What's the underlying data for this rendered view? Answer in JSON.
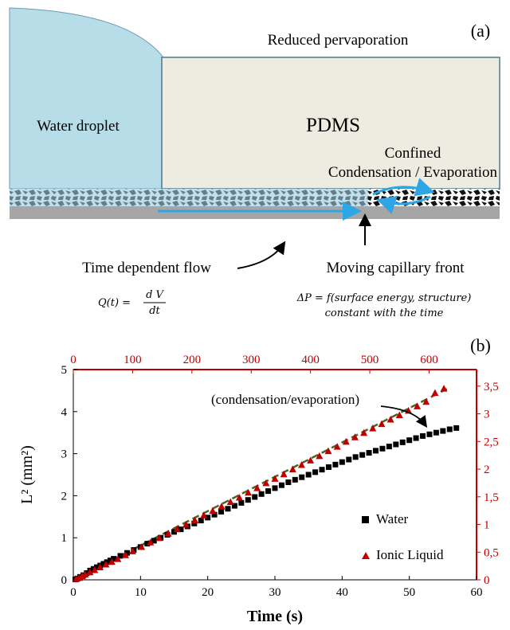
{
  "panel_a": {
    "label": "(a)",
    "top_text": "Reduced pervaporation",
    "droplet_label": "Water droplet",
    "pdms_label": "PDMS",
    "confined_line1": "Confined",
    "confined_line2": "Condensation / Evaporation",
    "flow_label": "Time dependent flow",
    "front_label": "Moving capillary front",
    "eq_q_left": "Q(t) =",
    "eq_q_num": "d V",
    "eq_q_den": "dt",
    "eq_p_line1": "ΔP = f(surface energy, structure)",
    "eq_p_line2": "constant with the time",
    "colors": {
      "droplet": "#b7dde8",
      "pdms": "#eeece1",
      "substrate": "#a6a6a6",
      "arrow": "#2ea6e6"
    }
  },
  "chart_data": {
    "type": "scatter",
    "label": "(b)",
    "xlabel": "Time (s)",
    "ylabel": "L² (mm²)",
    "annotation": "(condensation/evaporation)",
    "x_bottom_ticks": [
      "0",
      "10",
      "20",
      "30",
      "40",
      "50",
      "60"
    ],
    "x_bottom_range": [
      0,
      60
    ],
    "x_top_ticks": [
      "0",
      "100",
      "200",
      "300",
      "400",
      "500",
      "600"
    ],
    "x_top_range": [
      0,
      680
    ],
    "y_left_ticks": [
      "0",
      "1",
      "2",
      "3",
      "4",
      "5"
    ],
    "y_left_range": [
      0,
      5
    ],
    "y_right_ticks": [
      "0",
      "0,5",
      "1",
      "1,5",
      "2",
      "2,5",
      "3",
      "3,5"
    ],
    "y_right_range": [
      0,
      3.8
    ],
    "colors": {
      "water": "#000000",
      "ionic": "#c00000",
      "fit": "#4f6228",
      "top_axis": "#c00000"
    },
    "series": [
      {
        "name": "Water",
        "axes": "bottom-left",
        "marker": "square",
        "x": [
          0.3,
          0.6,
          1,
          1.5,
          2,
          2.5,
          3,
          3.5,
          4,
          4.5,
          5,
          5.5,
          6,
          7,
          8,
          9,
          10,
          11,
          12,
          13,
          14,
          15,
          16,
          17,
          18,
          19,
          20,
          21,
          22,
          23,
          24,
          25,
          26,
          27,
          28,
          29,
          30,
          31,
          32,
          33,
          34,
          35,
          36,
          37,
          38,
          39,
          40,
          41,
          42,
          43,
          44,
          45,
          46,
          47,
          48,
          49,
          50,
          51,
          52,
          53,
          54,
          55,
          56,
          57
        ],
        "y": [
          0.01,
          0.03,
          0.07,
          0.11,
          0.16,
          0.22,
          0.26,
          0.3,
          0.34,
          0.38,
          0.42,
          0.46,
          0.5,
          0.57,
          0.64,
          0.71,
          0.78,
          0.86,
          0.93,
          1.0,
          1.07,
          1.14,
          1.2,
          1.27,
          1.34,
          1.41,
          1.48,
          1.55,
          1.62,
          1.69,
          1.76,
          1.83,
          1.9,
          1.97,
          2.04,
          2.11,
          2.18,
          2.25,
          2.32,
          2.38,
          2.44,
          2.5,
          2.56,
          2.62,
          2.68,
          2.74,
          2.8,
          2.86,
          2.92,
          2.97,
          3.02,
          3.07,
          3.12,
          3.17,
          3.22,
          3.27,
          3.32,
          3.37,
          3.42,
          3.46,
          3.5,
          3.54,
          3.58,
          3.61
        ]
      },
      {
        "name": "Ionic Liquid",
        "axes": "top-right",
        "marker": "triangle",
        "x": [
          5,
          10,
          15,
          20,
          28,
          36,
          45,
          55,
          65,
          75,
          88,
          100,
          115,
          130,
          145,
          160,
          175,
          190,
          205,
          220,
          235,
          250,
          265,
          280,
          295,
          310,
          325,
          340,
          355,
          370,
          385,
          400,
          415,
          430,
          445,
          460,
          475,
          490,
          505,
          520,
          535,
          550,
          565,
          580,
          595,
          610,
          625
        ],
        "y": [
          0.02,
          0.04,
          0.07,
          0.1,
          0.14,
          0.18,
          0.23,
          0.28,
          0.33,
          0.38,
          0.45,
          0.52,
          0.6,
          0.68,
          0.76,
          0.84,
          0.92,
          1.0,
          1.08,
          1.17,
          1.25,
          1.33,
          1.41,
          1.49,
          1.58,
          1.66,
          1.75,
          1.83,
          1.91,
          2.0,
          2.08,
          2.16,
          2.24,
          2.33,
          2.41,
          2.5,
          2.58,
          2.66,
          2.74,
          2.82,
          2.9,
          2.98,
          3.06,
          3.14,
          3.22,
          3.38,
          3.46
        ]
      }
    ],
    "fit_line": {
      "axes": "top-right",
      "x": [
        0,
        630
      ],
      "y": [
        0,
        3.45
      ]
    },
    "legend": "right, lower-middle"
  }
}
